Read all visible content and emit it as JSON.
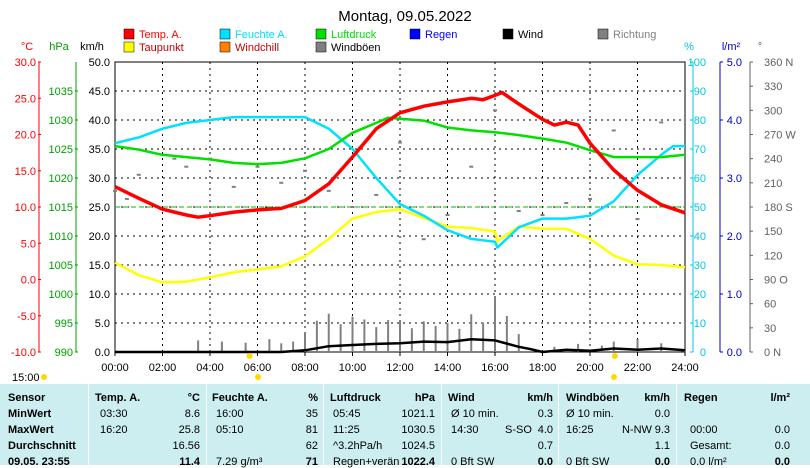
{
  "chart_data": {
    "type": "line",
    "title": "Montag, 09.05.2022",
    "x_ticks": [
      "00:00",
      "02:00",
      "04:00",
      "06:00",
      "08:00",
      "10:00",
      "12:00",
      "14:00",
      "16:00",
      "18:00",
      "20:00",
      "22:00",
      "24:00"
    ],
    "axes": {
      "temp": {
        "unit": "°C",
        "ticks": [
          "30.0",
          "25.0",
          "20.0",
          "15.0",
          "10.0",
          "5.0",
          "0.0",
          "-5.0",
          "-10.0"
        ],
        "range": [
          -10,
          30
        ],
        "color": "#ff0000"
      },
      "pressure": {
        "unit": "hPa",
        "ticks": [
          "1035",
          "1030",
          "1025",
          "1020",
          "1015",
          "1010",
          "1005",
          "1000",
          "995",
          "990"
        ],
        "range": [
          990,
          1040
        ],
        "color": "#00a000"
      },
      "wind": {
        "unit": "km/h",
        "ticks": [
          "50.0",
          "45.0",
          "40.0",
          "35.0",
          "30.0",
          "25.0",
          "20.0",
          "15.0",
          "10.0",
          "5.0",
          "0.0"
        ],
        "range": [
          0,
          50
        ],
        "color": "#000000"
      },
      "humidity": {
        "unit": "%",
        "ticks": [
          "100",
          "90",
          "80",
          "70",
          "60",
          "50",
          "40",
          "30",
          "20",
          "10",
          "0"
        ],
        "range": [
          0,
          100
        ],
        "color": "#00c8e0"
      },
      "rain": {
        "unit": "l/m²",
        "ticks": [
          "5.0",
          "4.0",
          "3.0",
          "2.0",
          "1.0",
          "0.0"
        ],
        "range": [
          0,
          5
        ],
        "color": "#0000c0"
      },
      "direction": {
        "unit": "°",
        "ticks": [
          "360 N",
          "330",
          "300",
          "270 W",
          "240",
          "210",
          "180 S",
          "150",
          "120",
          "90 O",
          "60",
          "30",
          "0 N"
        ],
        "range": [
          0,
          360
        ],
        "color": "#606060"
      }
    },
    "legend": [
      {
        "name": "Temp. A.",
        "color": "#ff0000"
      },
      {
        "name": "Feuchte A.",
        "color": "#00e0ff"
      },
      {
        "name": "Luftdruck",
        "color": "#00e000"
      },
      {
        "name": "Regen",
        "color": "#0000ff"
      },
      {
        "name": "Wind",
        "color": "#000000"
      },
      {
        "name": "Richtung",
        "color": "#808080"
      },
      {
        "name": "Taupunkt",
        "color": "#ffff00"
      },
      {
        "name": "Windchill",
        "color": "#ff8000"
      },
      {
        "name": "Windböen",
        "color": "#808080"
      }
    ],
    "series": [
      {
        "name": "Temp. A.",
        "axis": "temp",
        "color": "#ff0000",
        "x": [
          0,
          1,
          2,
          3,
          3.5,
          4,
          5,
          6,
          7,
          8,
          9,
          10,
          11,
          12,
          13,
          14,
          15,
          15.5,
          16,
          16.3,
          17,
          18,
          18.5,
          19,
          19.5,
          20,
          21,
          22,
          23,
          24
        ],
        "y": [
          12.8,
          11.2,
          9.7,
          8.9,
          8.6,
          8.8,
          9.3,
          9.6,
          9.8,
          10.9,
          13.2,
          16.9,
          20.8,
          23.0,
          23.9,
          24.5,
          25.0,
          24.8,
          25.4,
          25.8,
          24.2,
          22.1,
          21.3,
          21.7,
          21.3,
          18.8,
          15.1,
          12.3,
          10.3,
          9.2
        ]
      },
      {
        "name": "Luftdruck",
        "axis": "pressure",
        "color": "#00e000",
        "x": [
          0,
          1,
          2,
          3,
          4,
          5,
          6,
          7,
          8,
          9,
          10,
          11,
          11.5,
          12,
          13,
          14,
          15,
          16,
          17,
          18,
          19,
          20,
          21,
          22,
          23,
          24
        ],
        "y": [
          1025.5,
          1024.9,
          1024.0,
          1023.6,
          1023.2,
          1022.6,
          1022.4,
          1022.6,
          1023.4,
          1025.0,
          1027.8,
          1029.5,
          1030.4,
          1030.2,
          1029.9,
          1028.7,
          1028.2,
          1027.9,
          1027.4,
          1026.8,
          1026.1,
          1024.8,
          1023.6,
          1023.6,
          1023.6,
          1024.0
        ]
      },
      {
        "name": "Feuchte A.",
        "axis": "humidity",
        "color": "#00e0ff",
        "x": [
          0,
          1,
          2,
          3,
          4,
          5,
          5.1,
          6,
          7,
          8,
          9,
          10,
          11,
          12,
          13,
          14,
          15,
          16,
          16.1,
          17,
          18,
          19,
          20,
          21,
          22,
          23,
          23.5,
          24
        ],
        "y": [
          72,
          74,
          77,
          79,
          80,
          81,
          81,
          81,
          81,
          81,
          77,
          70,
          60,
          51,
          47,
          42,
          39,
          38,
          36,
          43,
          46,
          46,
          47,
          52,
          61,
          68,
          71,
          71
        ]
      },
      {
        "name": "Taupunkt",
        "axis": "temp",
        "color": "#ffff00",
        "x": [
          0,
          1,
          2,
          3,
          4,
          5,
          6,
          7,
          8,
          9,
          10,
          11,
          12,
          13,
          14,
          15,
          16,
          16.1,
          17,
          18,
          19,
          20,
          21,
          22,
          23,
          24
        ],
        "y": [
          2.3,
          0.6,
          -0.4,
          -0.3,
          0.3,
          1.0,
          1.4,
          1.8,
          3.2,
          5.6,
          8.4,
          9.3,
          9.7,
          8.5,
          7.3,
          7.1,
          6.6,
          5.3,
          7.3,
          7.0,
          7.0,
          5.6,
          3.3,
          2.1,
          2.0,
          1.7
        ]
      },
      {
        "name": "Wind",
        "axis": "wind",
        "color": "#000000",
        "x": [
          0,
          6,
          7,
          8,
          9,
          10,
          11,
          12,
          13,
          14,
          15,
          16,
          17,
          17.5,
          18,
          19,
          20,
          21,
          22,
          23,
          24
        ],
        "y": [
          0,
          0,
          0,
          0.3,
          1.0,
          1.2,
          1.4,
          1.5,
          1.8,
          1.7,
          2.2,
          2.0,
          0.9,
          0.5,
          0,
          0.4,
          0.2,
          0.6,
          0.4,
          0.6,
          0.3
        ]
      },
      {
        "name": "Windböen",
        "axis": "wind",
        "color": "#808080",
        "x": [
          3.5,
          4.5,
          5.5,
          6.5,
          7.0,
          7.5,
          8.0,
          8.5,
          9.0,
          9.5,
          10,
          10.5,
          11,
          11.5,
          12,
          12.5,
          13,
          13.5,
          14,
          14.5,
          15,
          15.5,
          16,
          16.5,
          17,
          18.5,
          19.5,
          20.5,
          21,
          22,
          23,
          24
        ],
        "y": [
          2,
          1.8,
          1.6,
          2.2,
          1.5,
          1.8,
          3.2,
          5.4,
          6.6,
          4.8,
          6.1,
          5.6,
          4.3,
          5.5,
          5.2,
          4.1,
          5.3,
          4.5,
          5.0,
          4.0,
          6.5,
          5.1,
          9.3,
          6.2,
          3.1,
          0.9,
          1.4,
          1.1,
          1.8,
          2.2,
          1.5,
          1.2
        ]
      },
      {
        "name": "Richtung",
        "axis": "direction",
        "color": "#808080",
        "x": [
          0,
          0.5,
          1,
          2,
          2.5,
          3,
          4,
          5,
          6,
          7,
          8,
          9,
          10,
          11,
          12,
          13,
          14,
          15,
          16,
          17,
          18,
          19,
          20,
          21,
          22,
          23
        ],
        "y": [
          200,
          190,
          220,
          245,
          240,
          230,
          240,
          205,
          230,
          210,
          225,
          200,
          180,
          195,
          260,
          140,
          170,
          230,
          300,
          175,
          170,
          185,
          190,
          275,
          165,
          285
        ]
      }
    ],
    "reference_line": {
      "axis": "temp",
      "value": 10.0,
      "color": "#00c000"
    },
    "sun_markers": {
      "bar_label": "15:00",
      "sunrise": "05:40",
      "sunset": "21:03"
    }
  },
  "stats": {
    "headers": [
      "Sensor",
      "Temp. A.",
      "°C",
      "Feuchte A.",
      "%",
      "Luftdruck",
      "hPa",
      "Wind",
      "km/h",
      "Windböen",
      "km/h",
      "Regen",
      "l/m²"
    ],
    "rows": [
      {
        "label": "MinWert",
        "temp_time": "03:30",
        "temp_val": "8.6",
        "hum_time": "16:00",
        "hum_val": "35",
        "press_time": "05:45",
        "press_val": "1021.1",
        "wind_label": "Ø 10 min.",
        "wind_val": "0.3",
        "gust_label": "Ø 10 min.",
        "gust_val": "0.0",
        "rain_label": "Regen",
        "rain_val": ""
      },
      {
        "label": "MaxWert",
        "temp_time": "16:20",
        "temp_val": "25.8",
        "hum_time": "05:10",
        "hum_val": "81",
        "press_time": "11:25",
        "press_val": "1030.5",
        "wind_label": "14:30",
        "wind_dir": "S-SO",
        "wind_val": "4.0",
        "gust_label": "16:25",
        "gust_dir": "N-NW",
        "gust_val": "9.3",
        "rain_label": "00:00",
        "rain_val": "0.0"
      },
      {
        "label": "Durchschnitt",
        "temp_time": "",
        "temp_val": "16.56",
        "hum_time": "",
        "hum_val": "62",
        "press_time": "^3.2hPa/h",
        "press_val": "1024.5",
        "wind_label": "",
        "wind_val": "0.7",
        "gust_label": "",
        "gust_val": "1.1",
        "rain_label": "Gesamt:",
        "rain_val": "0.0"
      },
      {
        "label": "09.05. 23:55",
        "temp_time": "",
        "temp_val": "11.4",
        "hum_time": "7.29 g/m³",
        "hum_val": "71",
        "press_time": "Regen+verän",
        "press_val": "1022.4",
        "wind_label": "0 Bft SW",
        "wind_val": "0.0",
        "gust_label": "0 Bft SW",
        "gust_val": "0.0",
        "rain_label": "0.0 l/m²",
        "rain_val": "0.0"
      }
    ]
  }
}
